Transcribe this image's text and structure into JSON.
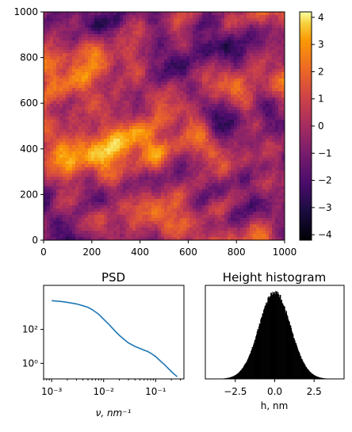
{
  "chart_data": [
    {
      "type": "heatmap",
      "colormap": "inferno",
      "xlim": [
        0,
        1000
      ],
      "ylim": [
        0,
        1000
      ],
      "x_ticks": [
        0,
        200,
        400,
        600,
        800,
        1000
      ],
      "y_ticks": [
        0,
        200,
        400,
        600,
        800,
        1000
      ],
      "colorbar": {
        "range": [
          -4.2,
          4.2
        ],
        "ticks": [
          4,
          3,
          2,
          1,
          0,
          -1,
          -2,
          -3,
          -4
        ],
        "tick_labels": [
          "4",
          "3",
          "2",
          "1",
          "0",
          "−1",
          "−2",
          "−3",
          "−4"
        ]
      },
      "grid": false
    },
    {
      "type": "line",
      "title": "PSD",
      "xlabel": "ν, nm⁻¹",
      "xscale": "log",
      "yscale": "log",
      "xlim": [
        0.0007,
        0.35
      ],
      "ylim": [
        0.12,
        40000
      ],
      "x_tick_labels": [
        "10⁻³",
        "10⁻²",
        "10⁻¹"
      ],
      "x_ticks": [
        0.001,
        0.01,
        0.1
      ],
      "y_tick_labels": [
        "10²",
        "10⁰"
      ],
      "y_ticks": [
        100,
        1
      ],
      "color": "#1f77b4",
      "series": [
        {
          "x": [
            0.001,
            0.0015,
            0.002,
            0.003,
            0.004,
            0.005,
            0.006,
            0.008,
            0.01,
            0.013,
            0.016,
            0.02,
            0.025,
            0.03,
            0.04,
            0.05,
            0.06,
            0.07,
            0.08,
            0.1,
            0.12,
            0.15,
            0.18,
            0.21,
            0.24,
            0.26
          ],
          "y": [
            5000,
            4500,
            4000,
            3200,
            2500,
            2000,
            1500,
            800,
            400,
            180,
            90,
            45,
            25,
            16,
            10,
            7.5,
            6,
            5,
            4,
            2.5,
            1.5,
            0.8,
            0.45,
            0.28,
            0.2,
            0.16
          ]
        }
      ],
      "grid": false
    },
    {
      "type": "bar",
      "title": "Height histogram",
      "xlabel": "h, nm",
      "xlim": [
        -4.4,
        4.4
      ],
      "x_ticks": [
        -2.5,
        0.0,
        2.5
      ],
      "x_tick_labels": [
        "−2.5",
        "0.0",
        "2.5"
      ],
      "distribution": {
        "mean": 0.0,
        "std": 1.0,
        "bins": 220,
        "range": [
          -4.2,
          4.2
        ]
      },
      "color": "#000000",
      "grid": false
    }
  ]
}
